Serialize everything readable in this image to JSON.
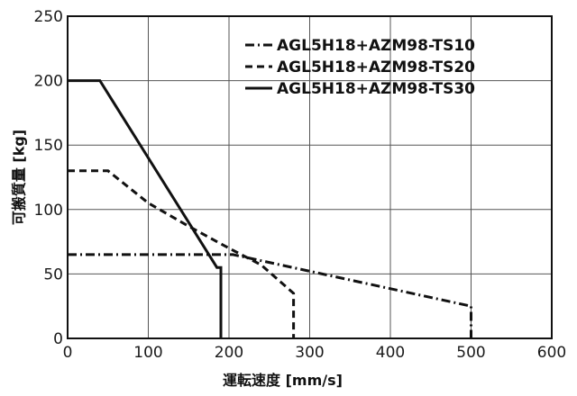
{
  "chart_data": {
    "type": "line",
    "xlabel": "運転速度 [mm/s]",
    "ylabel": "可搬質量 [kg]",
    "xlim": [
      0,
      600
    ],
    "ylim": [
      0,
      250
    ],
    "xticks": [
      0,
      100,
      200,
      300,
      400,
      500,
      600
    ],
    "yticks": [
      0,
      50,
      100,
      150,
      200,
      250
    ],
    "grid": true,
    "legend_position": "top-right",
    "series": [
      {
        "name": "AGL5H18+AZM98-TS10",
        "line_style": "dash-dot",
        "color": "#111111",
        "points": [
          [
            0,
            65
          ],
          [
            205,
            65
          ],
          [
            500,
            25
          ],
          [
            500,
            0
          ]
        ]
      },
      {
        "name": "AGL5H18+AZM98-TS20",
        "line_style": "dashed",
        "color": "#111111",
        "points": [
          [
            0,
            130
          ],
          [
            50,
            130
          ],
          [
            100,
            105
          ],
          [
            150,
            87
          ],
          [
            200,
            70
          ],
          [
            240,
            57
          ],
          [
            280,
            35
          ],
          [
            280,
            0
          ]
        ]
      },
      {
        "name": "AGL5H18+AZM98-TS30",
        "line_style": "solid",
        "color": "#111111",
        "points": [
          [
            0,
            200
          ],
          [
            40,
            200
          ],
          [
            185,
            55
          ],
          [
            190,
            55
          ],
          [
            190,
            0
          ]
        ]
      }
    ]
  }
}
